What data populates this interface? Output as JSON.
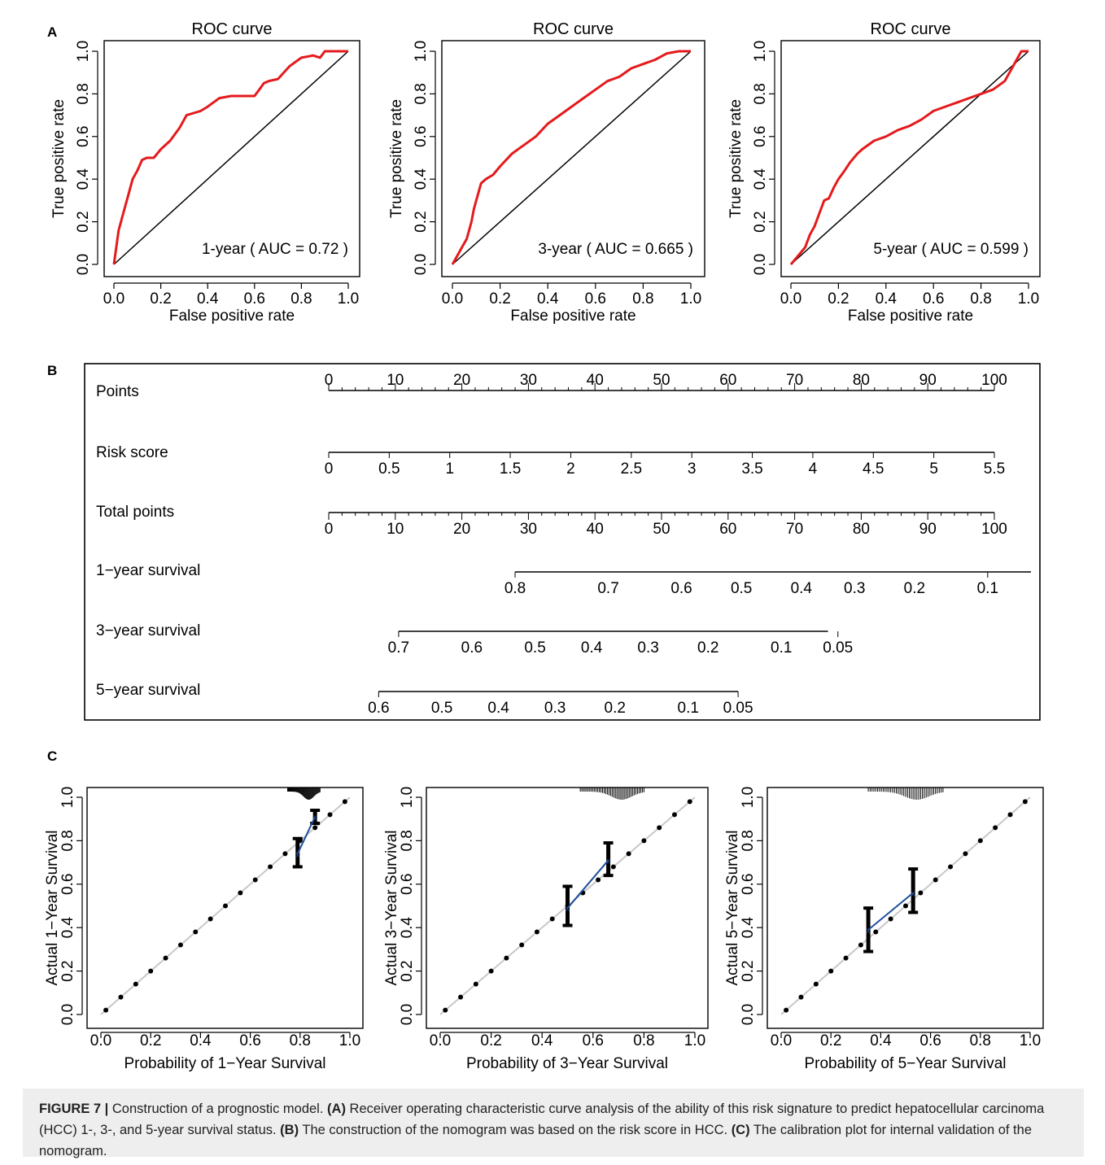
{
  "panel_labels": {
    "a": "A",
    "b": "B",
    "c": "C"
  },
  "colors": {
    "roc_line": "#e41a1c",
    "calib_line": "#1f4e9c",
    "diag": "#000000",
    "calib_diag": "#c8c8c8"
  },
  "chart_data": [
    {
      "type": "line",
      "panel": "A",
      "title": "ROC curve",
      "xlabel": "False positive rate",
      "ylabel": "True positive rate",
      "xlim": [
        0,
        1
      ],
      "ylim": [
        0,
        1
      ],
      "xticks": [
        "0.0",
        "0.2",
        "0.4",
        "0.6",
        "0.8",
        "1.0"
      ],
      "yticks": [
        "0.0",
        "0.2",
        "0.4",
        "0.6",
        "0.8",
        "1.0"
      ],
      "annotation": "1-year ( AUC =  0.72 )",
      "series": [
        {
          "x": [
            0,
            0.01,
            0.02,
            0.04,
            0.06,
            0.08,
            0.1,
            0.12,
            0.14,
            0.17,
            0.2,
            0.24,
            0.28,
            0.31,
            0.34,
            0.37,
            0.4,
            0.45,
            0.5,
            0.55,
            0.6,
            0.62,
            0.64,
            0.66,
            0.7,
            0.75,
            0.8,
            0.85,
            0.88,
            0.9,
            0.95,
            1.0
          ],
          "y": [
            0,
            0.08,
            0.16,
            0.24,
            0.32,
            0.4,
            0.44,
            0.49,
            0.5,
            0.5,
            0.54,
            0.58,
            0.64,
            0.7,
            0.71,
            0.72,
            0.74,
            0.78,
            0.79,
            0.79,
            0.79,
            0.82,
            0.85,
            0.86,
            0.87,
            0.93,
            0.97,
            0.98,
            0.97,
            1.0,
            1.0,
            1.0
          ]
        }
      ]
    },
    {
      "type": "line",
      "panel": "A",
      "title": "ROC curve",
      "xlabel": "False positive rate",
      "ylabel": "True positive rate",
      "xlim": [
        0,
        1
      ],
      "ylim": [
        0,
        1
      ],
      "xticks": [
        "0.0",
        "0.2",
        "0.4",
        "0.6",
        "0.8",
        "1.0"
      ],
      "yticks": [
        "0.0",
        "0.2",
        "0.4",
        "0.6",
        "0.8",
        "1.0"
      ],
      "annotation": "3-year ( AUC =  0.665 )",
      "series": [
        {
          "x": [
            0,
            0.02,
            0.04,
            0.06,
            0.08,
            0.09,
            0.1,
            0.12,
            0.14,
            0.17,
            0.2,
            0.25,
            0.3,
            0.35,
            0.4,
            0.45,
            0.5,
            0.55,
            0.6,
            0.65,
            0.7,
            0.75,
            0.8,
            0.85,
            0.9,
            0.95,
            1.0
          ],
          "y": [
            0,
            0.04,
            0.08,
            0.12,
            0.2,
            0.26,
            0.3,
            0.38,
            0.4,
            0.42,
            0.46,
            0.52,
            0.56,
            0.6,
            0.66,
            0.7,
            0.74,
            0.78,
            0.82,
            0.86,
            0.88,
            0.92,
            0.94,
            0.96,
            0.99,
            1.0,
            1.0
          ]
        }
      ]
    },
    {
      "type": "line",
      "panel": "A",
      "title": "ROC curve",
      "xlabel": "False positive rate",
      "ylabel": "True positive rate",
      "xlim": [
        0,
        1
      ],
      "ylim": [
        0,
        1
      ],
      "xticks": [
        "0.0",
        "0.2",
        "0.4",
        "0.6",
        "0.8",
        "1.0"
      ],
      "yticks": [
        "0.0",
        "0.2",
        "0.4",
        "0.6",
        "0.8",
        "1.0"
      ],
      "annotation": "5-year ( AUC =  0.599 )",
      "series": [
        {
          "x": [
            0,
            0.03,
            0.06,
            0.08,
            0.1,
            0.12,
            0.14,
            0.16,
            0.18,
            0.2,
            0.22,
            0.25,
            0.28,
            0.3,
            0.35,
            0.4,
            0.45,
            0.5,
            0.55,
            0.6,
            0.65,
            0.7,
            0.75,
            0.8,
            0.85,
            0.9,
            0.93,
            0.95,
            0.97,
            1.0
          ],
          "y": [
            0,
            0.04,
            0.08,
            0.14,
            0.18,
            0.24,
            0.3,
            0.31,
            0.36,
            0.4,
            0.43,
            0.48,
            0.52,
            0.54,
            0.58,
            0.6,
            0.63,
            0.65,
            0.68,
            0.72,
            0.74,
            0.76,
            0.78,
            0.8,
            0.82,
            0.86,
            0.92,
            0.96,
            1.0,
            1.0
          ]
        }
      ]
    },
    {
      "type": "scatter",
      "panel": "C",
      "xlabel": "Probability of 1−Year Survival",
      "ylabel": "Actual 1−Year Survival",
      "xlim": [
        0,
        1
      ],
      "ylim": [
        0,
        1
      ],
      "xticks": [
        "0.0",
        "0.2",
        "0.4",
        "0.6",
        "0.8",
        "1.0"
      ],
      "yticks": [
        "0.0",
        "0.2",
        "0.4",
        "0.6",
        "0.8",
        "1.0"
      ],
      "groups": [
        {
          "predicted": 0.79,
          "observed": 0.74,
          "ci": [
            0.68,
            0.81
          ]
        },
        {
          "predicted": 0.86,
          "observed": 0.91,
          "ci": [
            0.88,
            0.94
          ]
        }
      ],
      "rug_range": [
        0.75,
        0.88
      ]
    },
    {
      "type": "scatter",
      "panel": "C",
      "xlabel": "Probability of 3−Year Survival",
      "ylabel": "Actual 3−Year Survival",
      "xlim": [
        0,
        1
      ],
      "ylim": [
        0,
        1
      ],
      "xticks": [
        "0.0",
        "0.2",
        "0.4",
        "0.6",
        "0.8",
        "1.0"
      ],
      "yticks": [
        "0.0",
        "0.2",
        "0.4",
        "0.6",
        "0.8",
        "1.0"
      ],
      "groups": [
        {
          "predicted": 0.5,
          "observed": 0.49,
          "ci": [
            0.41,
            0.59
          ]
        },
        {
          "predicted": 0.66,
          "observed": 0.71,
          "ci": [
            0.64,
            0.79
          ]
        }
      ],
      "rug_range": [
        0.55,
        0.8
      ]
    },
    {
      "type": "scatter",
      "panel": "C",
      "xlabel": "Probability of 5−Year Survival",
      "ylabel": "Actual 5−Year Survival",
      "xlim": [
        0,
        1
      ],
      "ylim": [
        0,
        1
      ],
      "xticks": [
        "0.0",
        "0.2",
        "0.4",
        "0.6",
        "0.8",
        "1.0"
      ],
      "yticks": [
        "0.0",
        "0.2",
        "0.4",
        "0.6",
        "0.8",
        "1.0"
      ],
      "groups": [
        {
          "predicted": 0.35,
          "observed": 0.39,
          "ci": [
            0.29,
            0.49
          ]
        },
        {
          "predicted": 0.53,
          "observed": 0.56,
          "ci": [
            0.47,
            0.67
          ]
        }
      ],
      "rug_range": [
        0.35,
        0.65
      ]
    }
  ],
  "nomogram": {
    "rows": [
      {
        "label": "Points",
        "values": [
          "0",
          "10",
          "20",
          "30",
          "40",
          "50",
          "60",
          "70",
          "80",
          "90",
          "100"
        ]
      },
      {
        "label": "Risk score",
        "values": [
          "0",
          "0.5",
          "1",
          "1.5",
          "2",
          "2.5",
          "3",
          "3.5",
          "4",
          "4.5",
          "5",
          "5.5"
        ]
      },
      {
        "label": "Total points",
        "values": [
          "0",
          "10",
          "20",
          "30",
          "40",
          "50",
          "60",
          "70",
          "80",
          "90",
          "100"
        ]
      },
      {
        "label": "1−year survival",
        "values": [
          "0.8",
          "0.7",
          "0.6",
          "0.5",
          "0.4",
          "0.3",
          "0.2",
          "0.1"
        ]
      },
      {
        "label": "3−year survival",
        "values": [
          "0.7",
          "0.6",
          "0.5",
          "0.4",
          "0.3",
          "0.2",
          "0.1",
          "0.05"
        ]
      },
      {
        "label": "5−year survival",
        "values": [
          "0.6",
          "0.5",
          "0.4",
          "0.3",
          "0.2",
          "0.1",
          "0.05"
        ]
      }
    ]
  },
  "caption": {
    "figure": "FIGURE 7 |",
    "lead": " Construction of a prognostic model. ",
    "a_tag": "(A)",
    "a_text": " Receiver operating characteristic curve analysis of the ability of this risk signature to predict hepatocellular carcinoma (HCC) 1-, 3-, and 5-year survival status. ",
    "b_tag": "(B)",
    "b_text": " The construction of the nomogram was based on the risk score in HCC. ",
    "c_tag": "(C)",
    "c_text": " The calibration plot for internal validation of the nomogram."
  }
}
